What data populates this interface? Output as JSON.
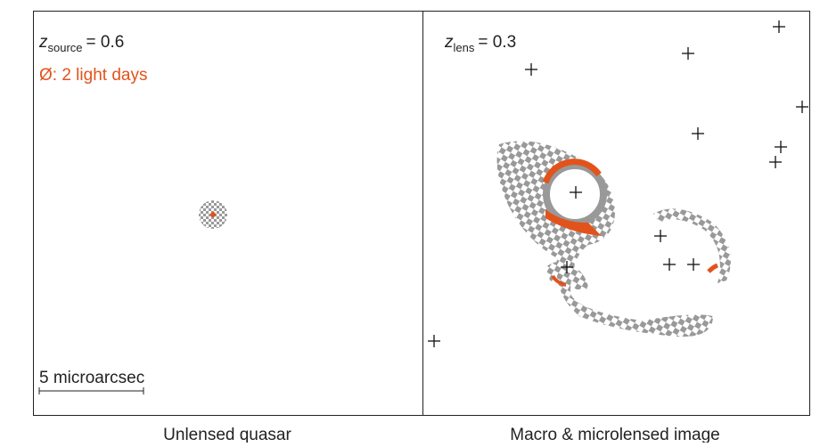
{
  "panels": [
    {
      "label_symbol": "z",
      "label_subscript": "source",
      "label_value": "= 0.6",
      "size_note": "Ø: 2 light days",
      "scale_bar": "5 microarcsec",
      "caption": "Unlensed quasar"
    },
    {
      "label_symbol": "z",
      "label_subscript": "lens",
      "label_value": "= 0.3",
      "caption": "Macro & microlensed image"
    }
  ]
}
